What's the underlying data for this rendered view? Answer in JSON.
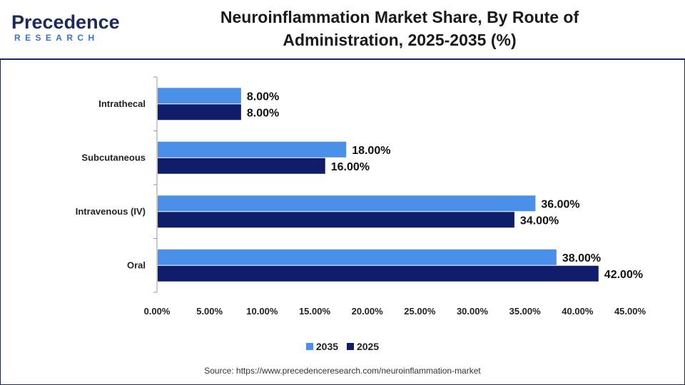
{
  "header": {
    "logo_word": "Precedence",
    "logo_sub": "RESEARCH",
    "title_line1": "Neuroinflammation Market Share, By Route of",
    "title_line2": "Administration, 2025-2035 (%)"
  },
  "colors": {
    "series_2035": "#4a90e8",
    "series_2025": "#0f1d6b",
    "axis": "#999999",
    "brand_navy": "#1a2a5c",
    "brand_blue": "#3a6fd8"
  },
  "chart_data": {
    "type": "bar",
    "orientation": "horizontal",
    "categories": [
      "Intrathecal",
      "Subcutaneous",
      "Intravenous (IV)",
      "Oral"
    ],
    "series": [
      {
        "name": "2035",
        "values": [
          8.0,
          18.0,
          36.0,
          38.0
        ],
        "labels": [
          "8.00%",
          "18.00%",
          "36.00%",
          "38.00%"
        ]
      },
      {
        "name": "2025",
        "values": [
          8.0,
          16.0,
          34.0,
          42.0
        ],
        "labels": [
          "8.00%",
          "16.00%",
          "34.00%",
          "42.00%"
        ]
      }
    ],
    "xlim": [
      0,
      45
    ],
    "xticks": [
      0,
      5,
      10,
      15,
      20,
      25,
      30,
      35,
      40,
      45
    ],
    "xtick_labels": [
      "0.00%",
      "5.00%",
      "10.00%",
      "15.00%",
      "20.00%",
      "25.00%",
      "30.00%",
      "35.00%",
      "40.00%",
      "45.00%"
    ],
    "grid": false,
    "legend": "bottom-center"
  },
  "legend": {
    "item1": "2035",
    "item2": "2025"
  },
  "source": "Source: https://www.precedenceresearch.com/neuroinflammation-market"
}
